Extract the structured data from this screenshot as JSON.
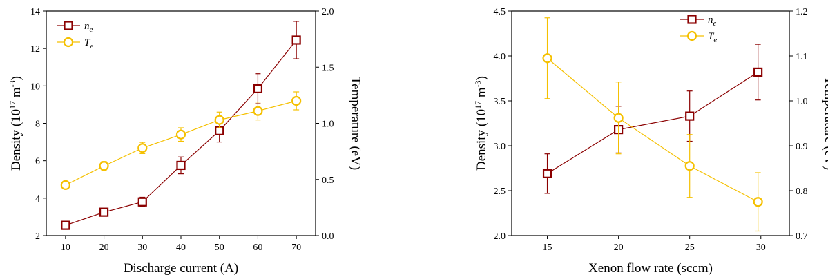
{
  "colors": {
    "ne": "#8b0000",
    "te": "#f5c000",
    "axis": "#000000"
  },
  "chart_data": [
    {
      "type": "line",
      "xlabel": "Discharge current (A)",
      "ylabel_left": {
        "prefix": "Density (10",
        "exp1": "17",
        "mid": " m",
        "exp2": "-3",
        "suffix": ")"
      },
      "ylabel_right": "Temperature (eV)",
      "xlim": [
        5,
        75
      ],
      "xticks": [
        "10",
        "20",
        "30",
        "40",
        "50",
        "60",
        "70"
      ],
      "ylim_left": [
        2,
        14
      ],
      "yticks_left": [
        "2",
        "4",
        "6",
        "8",
        "10",
        "12",
        "14"
      ],
      "ylim_right": [
        0.0,
        2.0
      ],
      "yticks_right": [
        "0.0",
        "0.5",
        "1.0",
        "1.5",
        "2.0"
      ],
      "legend": {
        "placement": "top-left",
        "ne_label": "n",
        "ne_sub": "e",
        "te_label": "T",
        "te_sub": "e"
      },
      "x": [
        10,
        20,
        30,
        40,
        50,
        60,
        70
      ],
      "series": [
        {
          "key": "ne",
          "axis": "left",
          "marker": "square",
          "values": [
            2.55,
            3.25,
            3.8,
            5.75,
            7.6,
            9.85,
            12.45
          ],
          "errors": [
            0.12,
            0.2,
            0.25,
            0.45,
            0.6,
            0.8,
            1.0
          ]
        },
        {
          "key": "te",
          "axis": "right",
          "marker": "circle",
          "values": [
            0.45,
            0.62,
            0.78,
            0.9,
            1.03,
            1.11,
            1.2
          ],
          "errors": [
            0.02,
            0.04,
            0.05,
            0.06,
            0.07,
            0.08,
            0.08
          ]
        }
      ]
    },
    {
      "type": "line",
      "xlabel": "Xenon flow rate (sccm)",
      "ylabel_left": {
        "prefix": "Density (10",
        "exp1": "17",
        "mid": " m",
        "exp2": "-3",
        "suffix": ")"
      },
      "ylabel_right": "Temperature (eV)",
      "xlim": [
        12.5,
        32
      ],
      "xticks": [
        "15",
        "20",
        "25",
        "30"
      ],
      "ylim_left": [
        2.0,
        4.5
      ],
      "yticks_left": [
        "2.0",
        "2.5",
        "3.0",
        "3.5",
        "4.0",
        "4.5"
      ],
      "ylim_right": [
        0.7,
        1.2
      ],
      "yticks_right": [
        "0.7",
        "0.8",
        "0.9",
        "1.0",
        "1.1",
        "1.2"
      ],
      "legend": {
        "placement": "top-right",
        "ne_label": "n",
        "ne_sub": "e",
        "te_label": "T",
        "te_sub": "e"
      },
      "x": [
        15,
        20,
        25,
        29.8
      ],
      "series": [
        {
          "key": "ne",
          "axis": "left",
          "marker": "square",
          "values": [
            2.69,
            3.18,
            3.33,
            3.82
          ],
          "errors": [
            0.22,
            0.26,
            0.28,
            0.31
          ]
        },
        {
          "key": "te",
          "axis": "right",
          "marker": "circle",
          "values": [
            1.095,
            0.962,
            0.855,
            0.775
          ],
          "errors": [
            0.09,
            0.08,
            0.07,
            0.065
          ]
        }
      ]
    }
  ]
}
